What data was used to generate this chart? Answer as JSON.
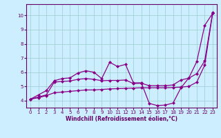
{
  "xlabel": "Windchill (Refroidissement éolien,°C)",
  "bg_color": "#cceeff",
  "line_color": "#880088",
  "grid_color": "#99cccc",
  "axis_color": "#660066",
  "text_color": "#660066",
  "xlim": [
    -0.5,
    23.5
  ],
  "ylim": [
    3.5,
    10.8
  ],
  "yticks": [
    4,
    5,
    6,
    7,
    8,
    9,
    10
  ],
  "xticks": [
    0,
    1,
    2,
    3,
    4,
    5,
    6,
    7,
    8,
    9,
    10,
    11,
    12,
    13,
    14,
    15,
    16,
    17,
    18,
    19,
    20,
    21,
    22,
    23
  ],
  "line1_x": [
    0,
    1,
    2,
    3,
    4,
    5,
    6,
    7,
    8,
    9,
    10,
    11,
    12,
    13,
    14,
    15,
    16,
    17,
    18,
    19,
    20,
    21,
    22,
    23
  ],
  "line1_y": [
    4.1,
    4.4,
    4.7,
    5.4,
    5.55,
    5.6,
    5.95,
    6.1,
    6.0,
    5.55,
    6.7,
    6.4,
    6.55,
    5.25,
    5.25,
    3.8,
    3.65,
    3.68,
    3.82,
    4.9,
    5.6,
    6.75,
    9.3,
    10.15
  ],
  "line2_x": [
    0,
    1,
    2,
    3,
    4,
    5,
    6,
    7,
    8,
    9,
    10,
    11,
    12,
    13,
    14,
    15,
    16,
    17,
    18,
    19,
    20,
    21,
    22,
    23
  ],
  "line2_y": [
    4.1,
    4.25,
    4.4,
    5.3,
    5.35,
    5.38,
    5.5,
    5.55,
    5.5,
    5.4,
    5.42,
    5.42,
    5.45,
    5.2,
    5.22,
    5.05,
    5.05,
    5.05,
    5.1,
    5.45,
    5.58,
    5.9,
    6.8,
    10.2
  ],
  "line3_x": [
    0,
    1,
    2,
    3,
    4,
    5,
    6,
    7,
    8,
    9,
    10,
    11,
    12,
    13,
    14,
    15,
    16,
    17,
    18,
    19,
    20,
    21,
    22,
    23
  ],
  "line3_y": [
    4.1,
    4.2,
    4.35,
    4.55,
    4.6,
    4.65,
    4.7,
    4.75,
    4.75,
    4.78,
    4.82,
    4.84,
    4.86,
    4.88,
    4.9,
    4.9,
    4.9,
    4.9,
    4.92,
    4.95,
    5.0,
    5.3,
    6.5,
    10.15
  ],
  "marker": "D",
  "markersize": 2.0,
  "linewidth": 0.9
}
